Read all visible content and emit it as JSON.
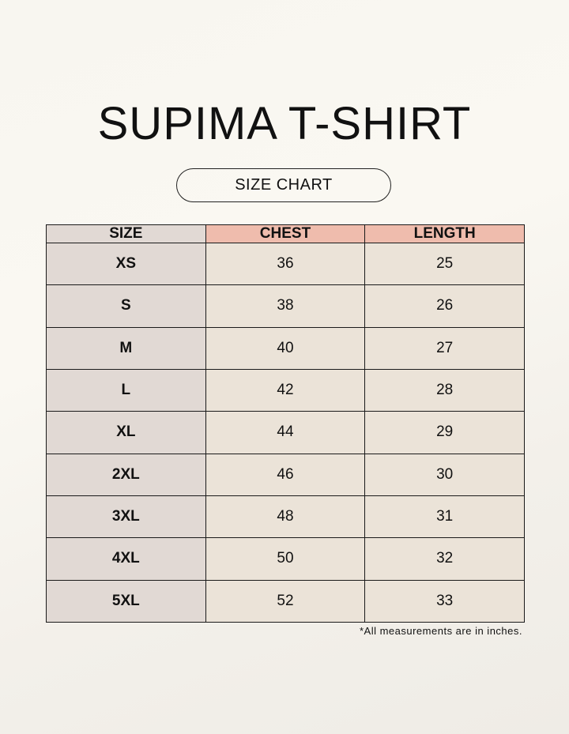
{
  "title": "SUPIMA T-SHIRT",
  "subtitle": "SIZE CHART",
  "colors": {
    "header_accent": "#efbcad",
    "size_column": "#e1d9d4",
    "value_cells": "#ebe3d8"
  },
  "table": {
    "headers": [
      "SIZE",
      "CHEST",
      "LENGTH"
    ],
    "rows": [
      [
        "XS",
        "36",
        "25"
      ],
      [
        "S",
        "38",
        "26"
      ],
      [
        "M",
        "40",
        "27"
      ],
      [
        "L",
        "42",
        "28"
      ],
      [
        "XL",
        "44",
        "29"
      ],
      [
        "2XL",
        "46",
        "30"
      ],
      [
        "3XL",
        "48",
        "31"
      ],
      [
        "4XL",
        "50",
        "32"
      ],
      [
        "5XL",
        "52",
        "33"
      ]
    ]
  },
  "note": "*All measurements are in inches."
}
